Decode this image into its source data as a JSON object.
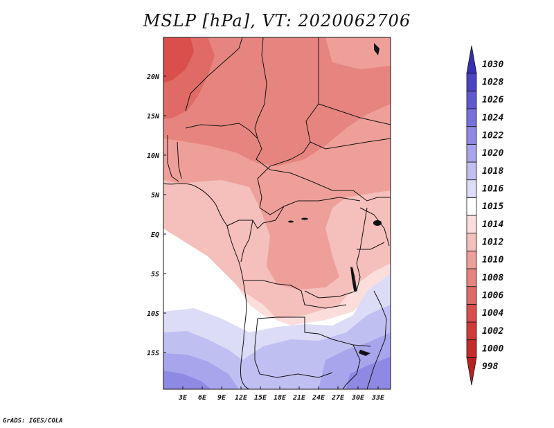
{
  "title": "MSLP [hPa], VT: 2020062706",
  "credit": "GrADS: IGES/COLA",
  "map": {
    "lat_labels": [
      "20N",
      "15N",
      "10N",
      "5N",
      "EQ",
      "5S",
      "10S",
      "15S"
    ],
    "lon_labels": [
      "3E",
      "6E",
      "9E",
      "12E",
      "15E",
      "18E",
      "21E",
      "24E",
      "27E",
      "30E",
      "33E"
    ]
  },
  "colorbar": {
    "levels": [
      "998",
      "1000",
      "1002",
      "1004",
      "1006",
      "1008",
      "1010",
      "1012",
      "1014",
      "1015",
      "1016",
      "1018",
      "1020",
      "1022",
      "1024",
      "1026",
      "1028",
      "1030"
    ],
    "colors": {
      "998": "#b8211f",
      "1000": "#c42c2a",
      "1002": "#d03a37",
      "1004": "#da4f4b",
      "1006": "#e06a66",
      "1008": "#e6857f",
      "1010": "#ee9f99",
      "1012": "#f5bfbb",
      "1014": "#fbdedc",
      "1015": "#ffffff",
      "1016": "#dcdcf7",
      "1018": "#c0bff2",
      "1020": "#a7a5ec",
      "1022": "#8e8ae4",
      "1024": "#7672dc",
      "1026": "#5e59d0",
      "1028": "#4a43c2",
      "1030": "#3530b2"
    }
  }
}
